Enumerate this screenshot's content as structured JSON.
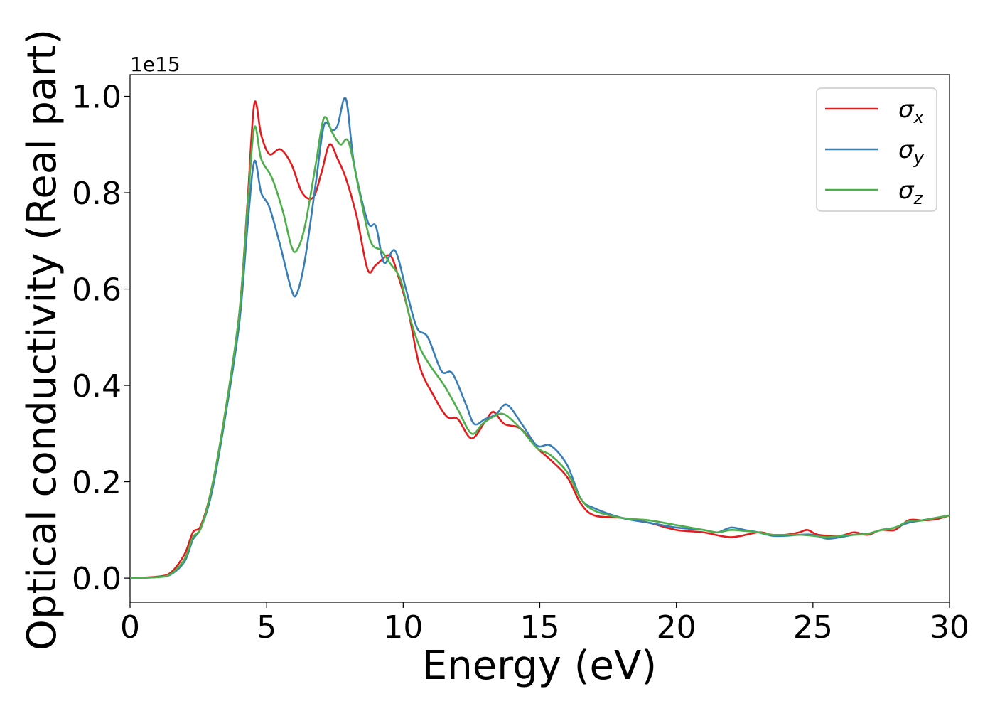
{
  "chart_data": {
    "type": "line",
    "xlabel": "Energy (eV)",
    "ylabel": "Optical conductivity (Real part)",
    "y_offset_text": "1e15",
    "xlim": [
      0,
      30
    ],
    "ylim": [
      -0.05,
      1.045
    ],
    "x_ticks": [
      0,
      5,
      10,
      15,
      20,
      25,
      30
    ],
    "x_tick_labels": [
      "0",
      "5",
      "10",
      "15",
      "20",
      "25",
      "30"
    ],
    "y_ticks": [
      0.0,
      0.2,
      0.4,
      0.6,
      0.8,
      1.0
    ],
    "y_tick_labels": [
      "0.0",
      "0.2",
      "0.4",
      "0.6",
      "0.8",
      "1.0"
    ],
    "grid": false,
    "legend_position": "top-right",
    "series": [
      {
        "name": "σx",
        "symbol": "σ",
        "subscript": "x",
        "color": "#e41a1c",
        "x": [
          0,
          1,
          1.5,
          2.0,
          2.3,
          2.6,
          3.0,
          3.5,
          4.0,
          4.3,
          4.55,
          4.8,
          5.1,
          5.5,
          5.9,
          6.3,
          6.7,
          7.0,
          7.3,
          7.6,
          7.9,
          8.3,
          8.7,
          9.0,
          9.5,
          9.8,
          10.2,
          10.6,
          11.1,
          11.6,
          12.0,
          12.5,
          13.0,
          13.3,
          13.7,
          14.3,
          14.9,
          15.4,
          16.0,
          16.5,
          17.0,
          18.0,
          19.0,
          20.0,
          21.0,
          22.0,
          23.0,
          23.5,
          24.0,
          24.5,
          24.8,
          25.2,
          26.0,
          26.5,
          27.0,
          27.5,
          28.0,
          28.5,
          29.0,
          29.5,
          30.0
        ],
        "values": [
          0.0,
          0.003,
          0.012,
          0.05,
          0.095,
          0.11,
          0.19,
          0.35,
          0.55,
          0.78,
          0.985,
          0.92,
          0.88,
          0.89,
          0.86,
          0.8,
          0.79,
          0.84,
          0.9,
          0.87,
          0.83,
          0.75,
          0.64,
          0.65,
          0.67,
          0.63,
          0.55,
          0.44,
          0.38,
          0.335,
          0.33,
          0.29,
          0.325,
          0.345,
          0.32,
          0.31,
          0.27,
          0.245,
          0.21,
          0.155,
          0.13,
          0.125,
          0.115,
          0.1,
          0.095,
          0.085,
          0.095,
          0.09,
          0.09,
          0.095,
          0.1,
          0.09,
          0.088,
          0.095,
          0.09,
          0.1,
          0.1,
          0.12,
          0.12,
          0.122,
          0.13
        ]
      },
      {
        "name": "σy",
        "symbol": "σ",
        "subscript": "y",
        "color": "#377eb8",
        "x": [
          0,
          1,
          1.5,
          2.0,
          2.3,
          2.6,
          3.0,
          3.5,
          4.0,
          4.3,
          4.55,
          4.8,
          5.1,
          5.5,
          5.9,
          6.1,
          6.4,
          6.8,
          7.1,
          7.4,
          7.6,
          7.9,
          8.2,
          8.7,
          9.0,
          9.3,
          9.7,
          10.1,
          10.5,
          10.9,
          11.4,
          11.8,
          12.3,
          12.6,
          13.0,
          13.4,
          13.8,
          14.4,
          14.9,
          15.4,
          16.0,
          16.5,
          17.0,
          18.0,
          19.0,
          20.0,
          21.0,
          21.5,
          22.0,
          22.5,
          23.0,
          23.5,
          24.0,
          24.5,
          25.0,
          25.5,
          26.0,
          26.5,
          27.0,
          27.5,
          28.0,
          28.5,
          29.0,
          29.5,
          30.0
        ],
        "values": [
          0.0,
          0.002,
          0.008,
          0.035,
          0.08,
          0.105,
          0.18,
          0.34,
          0.53,
          0.73,
          0.865,
          0.8,
          0.77,
          0.69,
          0.6,
          0.59,
          0.66,
          0.82,
          0.94,
          0.93,
          0.94,
          0.995,
          0.86,
          0.74,
          0.73,
          0.655,
          0.68,
          0.6,
          0.52,
          0.5,
          0.43,
          0.425,
          0.36,
          0.32,
          0.33,
          0.34,
          0.36,
          0.315,
          0.275,
          0.275,
          0.235,
          0.165,
          0.145,
          0.125,
          0.115,
          0.105,
          0.1,
          0.095,
          0.105,
          0.1,
          0.095,
          0.088,
          0.088,
          0.09,
          0.09,
          0.082,
          0.085,
          0.09,
          0.092,
          0.1,
          0.105,
          0.115,
          0.12,
          0.125,
          0.13
        ]
      },
      {
        "name": "σz",
        "symbol": "σ",
        "subscript": "z",
        "color": "#4daf4a",
        "x": [
          0,
          1,
          1.5,
          2.0,
          2.3,
          2.6,
          3.0,
          3.5,
          4.0,
          4.3,
          4.55,
          4.8,
          5.2,
          5.6,
          5.9,
          6.1,
          6.4,
          6.8,
          7.1,
          7.4,
          7.7,
          8.0,
          8.4,
          8.8,
          9.2,
          9.5,
          9.9,
          10.2,
          10.6,
          11.0,
          11.5,
          12.0,
          12.5,
          12.9,
          13.3,
          13.7,
          14.3,
          14.9,
          15.4,
          16.0,
          16.5,
          17.0,
          18.0,
          19.0,
          20.0,
          21.0,
          21.5,
          22.0,
          22.5,
          23.0,
          23.5,
          24.0,
          24.5,
          25.0,
          25.5,
          26.0,
          26.5,
          27.0,
          27.5,
          28.0,
          28.5,
          29.0,
          29.5,
          30.0
        ],
        "values": [
          0.0,
          0.002,
          0.009,
          0.04,
          0.085,
          0.105,
          0.19,
          0.35,
          0.55,
          0.77,
          0.935,
          0.87,
          0.83,
          0.76,
          0.69,
          0.68,
          0.73,
          0.86,
          0.955,
          0.925,
          0.9,
          0.905,
          0.8,
          0.7,
          0.68,
          0.655,
          0.62,
          0.55,
          0.48,
          0.44,
          0.4,
          0.35,
          0.3,
          0.32,
          0.335,
          0.34,
          0.31,
          0.27,
          0.255,
          0.22,
          0.165,
          0.14,
          0.125,
          0.12,
          0.11,
          0.1,
          0.095,
          0.1,
          0.098,
          0.095,
          0.09,
          0.09,
          0.09,
          0.088,
          0.085,
          0.088,
          0.09,
          0.092,
          0.1,
          0.105,
          0.118,
          0.12,
          0.125,
          0.13
        ]
      }
    ]
  }
}
